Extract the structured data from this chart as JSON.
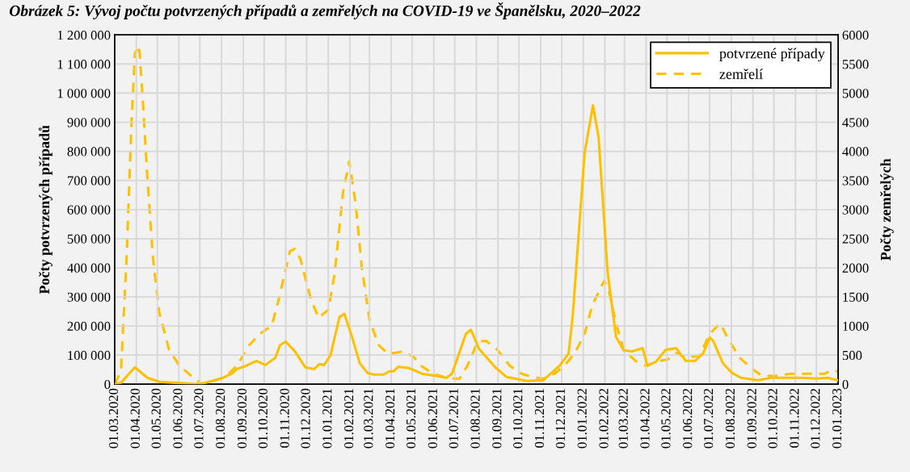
{
  "chart_data": {
    "type": "line",
    "title": "Obrázek 5: Vývoj počtu potvrzených případů a zemřelých na COVID-19 ve Španělsku, 2020–2022",
    "ylabel": "Počty potvrzených případů",
    "y2label": "Počty zemřelých",
    "series": [
      {
        "name": "potvrzené případy",
        "color": "#ffc000",
        "line_style": "solid",
        "x": [
          "2020-03-01",
          "2020-03-10",
          "2020-03-30",
          "2020-04-17",
          "2020-05-04",
          "2020-05-26",
          "2020-07-01",
          "2020-07-31",
          "2020-08-16",
          "2020-08-23",
          "2020-09-05",
          "2020-09-20",
          "2020-10-03",
          "2020-10-17",
          "2020-10-24",
          "2020-11-01",
          "2020-11-14",
          "2020-11-29",
          "2020-12-12",
          "2020-12-19",
          "2020-12-26",
          "2021-01-04",
          "2021-01-17",
          "2021-01-24",
          "2021-02-05",
          "2021-02-15",
          "2021-02-26",
          "2021-03-07",
          "2021-03-21",
          "2021-03-29",
          "2021-04-04",
          "2021-04-11",
          "2021-04-27",
          "2021-05-15",
          "2021-06-01",
          "2021-06-19",
          "2021-06-27",
          "2021-07-17",
          "2021-07-24",
          "2021-08-05",
          "2021-08-28",
          "2021-09-13",
          "2021-10-13",
          "2021-11-05",
          "2021-11-28",
          "2021-12-11",
          "2021-12-17",
          "2022-01-03",
          "2022-01-15",
          "2022-01-23",
          "2022-02-05",
          "2022-02-17",
          "2022-02-28",
          "2022-03-12",
          "2022-03-27",
          "2022-04-03",
          "2022-04-15",
          "2022-04-29",
          "2022-05-14",
          "2022-05-28",
          "2022-06-10",
          "2022-06-22",
          "2022-07-01",
          "2022-07-06",
          "2022-07-20",
          "2022-08-02",
          "2022-08-15",
          "2022-09-08",
          "2022-09-27",
          "2022-10-20",
          "2022-11-12",
          "2022-12-01",
          "2022-12-17",
          "2022-12-31"
        ],
        "values": [
          0,
          5000,
          58000,
          22000,
          8000,
          5000,
          0,
          19000,
          36000,
          52000,
          63000,
          80000,
          66000,
          91000,
          135000,
          146000,
          113000,
          58000,
          52000,
          69000,
          66000,
          99000,
          231000,
          242000,
          154000,
          72000,
          39000,
          33000,
          33000,
          44000,
          44000,
          60000,
          55000,
          36000,
          30000,
          22000,
          36000,
          173000,
          187000,
          121000,
          58000,
          25000,
          11000,
          14000,
          63000,
          105000,
          235000,
          795000,
          958000,
          848000,
          383000,
          162000,
          116000,
          113000,
          124000,
          63000,
          77000,
          118000,
          124000,
          80000,
          80000,
          107000,
          160000,
          149000,
          72000,
          39000,
          22000,
          14000,
          22000,
          22000,
          22000,
          19000,
          22000,
          14000
        ]
      },
      {
        "name": "zemřelí",
        "color": "#ffc000",
        "line_style": "dashed",
        "axis": "y2",
        "x": [
          "2020-03-01",
          "2020-03-10",
          "2020-03-18",
          "2020-03-25",
          "2020-03-30",
          "2020-04-05",
          "2020-04-10",
          "2020-04-17",
          "2020-04-25",
          "2020-05-04",
          "2020-05-18",
          "2020-06-02",
          "2020-06-18",
          "2020-07-03",
          "2020-07-17",
          "2020-08-06",
          "2020-08-23",
          "2020-09-10",
          "2020-09-25",
          "2020-10-12",
          "2020-10-22",
          "2020-11-07",
          "2020-11-14",
          "2020-11-22",
          "2020-12-07",
          "2020-12-18",
          "2021-01-01",
          "2021-01-10",
          "2021-01-22",
          "2021-01-31",
          "2021-02-09",
          "2021-02-18",
          "2021-03-01",
          "2021-03-14",
          "2021-03-26",
          "2021-04-06",
          "2021-04-18",
          "2021-05-03",
          "2021-05-14",
          "2021-05-31",
          "2021-06-15",
          "2021-06-26",
          "2021-07-08",
          "2021-07-19",
          "2021-08-03",
          "2021-08-15",
          "2021-08-31",
          "2021-09-18",
          "2021-10-05",
          "2021-10-20",
          "2021-11-05",
          "2021-11-21",
          "2021-12-05",
          "2021-12-20",
          "2022-01-03",
          "2022-01-14",
          "2022-01-31",
          "2022-02-06",
          "2022-02-17",
          "2022-02-28",
          "2022-03-17",
          "2022-04-01",
          "2022-04-15",
          "2022-05-02",
          "2022-05-14",
          "2022-05-28",
          "2022-06-17",
          "2022-07-01",
          "2022-07-16",
          "2022-07-28",
          "2022-08-13",
          "2022-08-28",
          "2022-09-13",
          "2022-10-02",
          "2022-10-25",
          "2022-11-20",
          "2022-12-13",
          "2022-12-21",
          "2022-12-31"
        ],
        "values": [
          0,
          220,
          2150,
          4450,
          5680,
          5820,
          4940,
          3520,
          2150,
          1225,
          590,
          315,
          150,
          10,
          40,
          125,
          315,
          675,
          865,
          1005,
          1460,
          2285,
          2325,
          2150,
          1460,
          1140,
          1280,
          1900,
          3290,
          3830,
          3110,
          2000,
          1100,
          675,
          535,
          535,
          565,
          470,
          315,
          180,
          125,
          95,
          95,
          315,
          730,
          745,
          590,
          315,
          180,
          125,
          95,
          180,
          315,
          535,
          865,
          1360,
          1775,
          1640,
          1045,
          590,
          400,
          315,
          385,
          425,
          535,
          455,
          495,
          865,
          1045,
          770,
          455,
          290,
          150,
          140,
          180,
          180,
          180,
          235,
          220
        ]
      }
    ],
    "xlim": [
      "2020-03-01",
      "2023-01-01"
    ],
    "xticks": [
      {
        "value": "2020-03-01",
        "label": "01.03.2020"
      },
      {
        "value": "2020-04-01",
        "label": "01.04.2020"
      },
      {
        "value": "2020-05-01",
        "label": "01.05.2020"
      },
      {
        "value": "2020-06-01",
        "label": "01.06.2020"
      },
      {
        "value": "2020-07-01",
        "label": "01.07.2020"
      },
      {
        "value": "2020-08-01",
        "label": "01.08.2020"
      },
      {
        "value": "2020-09-01",
        "label": "01.09.2020"
      },
      {
        "value": "2020-10-01",
        "label": "01.10.2020"
      },
      {
        "value": "2020-11-01",
        "label": "01.11.2020"
      },
      {
        "value": "2020-12-01",
        "label": "01.12.2020"
      },
      {
        "value": "2021-01-01",
        "label": "01.01.2021"
      },
      {
        "value": "2021-02-01",
        "label": "01.02.2021"
      },
      {
        "value": "2021-03-01",
        "label": "01.03.2021"
      },
      {
        "value": "2021-04-01",
        "label": "01.04.2021"
      },
      {
        "value": "2021-05-01",
        "label": "01.05.2021"
      },
      {
        "value": "2021-06-01",
        "label": "01.06.2021"
      },
      {
        "value": "2021-07-01",
        "label": "01.07.2021"
      },
      {
        "value": "2021-08-01",
        "label": "01.08.2021"
      },
      {
        "value": "2021-09-01",
        "label": "01.09.2021"
      },
      {
        "value": "2021-10-01",
        "label": "01.10.2021"
      },
      {
        "value": "2021-11-01",
        "label": "01.11.2021"
      },
      {
        "value": "2021-12-01",
        "label": "01.12.2021"
      },
      {
        "value": "2022-01-01",
        "label": "01.01.2022"
      },
      {
        "value": "2022-02-01",
        "label": "01.02.2022"
      },
      {
        "value": "2022-03-01",
        "label": "01.03.2022"
      },
      {
        "value": "2022-04-01",
        "label": "01.04.2022"
      },
      {
        "value": "2022-05-01",
        "label": "01.05.2022"
      },
      {
        "value": "2022-06-01",
        "label": "01.06.2022"
      },
      {
        "value": "2022-07-01",
        "label": "01.07.2022"
      },
      {
        "value": "2022-08-01",
        "label": "01.08.2022"
      },
      {
        "value": "2022-09-01",
        "label": "01.09.2022"
      },
      {
        "value": "2022-10-01",
        "label": "01.10.2022"
      },
      {
        "value": "2022-11-01",
        "label": "01.11.2022"
      },
      {
        "value": "2022-12-01",
        "label": "01.12.2022"
      },
      {
        "value": "2023-01-01",
        "label": "01.01.2023"
      }
    ],
    "ylim": [
      0,
      1200000
    ],
    "yticks": [
      0,
      {
        "value": 100000,
        "label": "100 000"
      },
      {
        "value": 200000,
        "label": "200 000"
      },
      {
        "value": 300000,
        "label": "300 000"
      },
      {
        "value": 400000,
        "label": "400 000"
      },
      {
        "value": 500000,
        "label": "500 000"
      },
      {
        "value": 600000,
        "label": "600 000"
      },
      {
        "value": 700000,
        "label": "700 000"
      },
      {
        "value": 800000,
        "label": "800 000"
      },
      {
        "value": 900000,
        "label": "900 000"
      },
      {
        "value": 1000000,
        "label": "1 000 000"
      },
      {
        "value": 1100000,
        "label": "1 100 000"
      },
      {
        "value": 1200000,
        "label": "1 200 000"
      }
    ],
    "y2lim": [
      0,
      6000
    ],
    "y2ticks": [
      0,
      500,
      1000,
      1500,
      2000,
      2500,
      3000,
      3500,
      4000,
      4500,
      5000,
      5500,
      6000
    ],
    "grid": true,
    "legend": "top right",
    "marker": "none"
  }
}
